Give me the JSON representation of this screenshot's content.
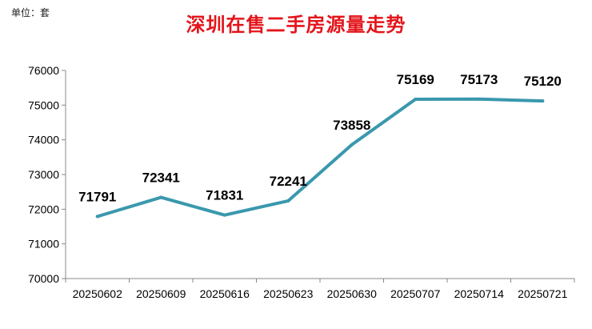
{
  "unit_label": "单位：套",
  "chart_data": {
    "type": "line",
    "title": "深圳在售二手房源量走势",
    "xlabel": "",
    "ylabel": "",
    "categories": [
      "20250602",
      "20250609",
      "20250616",
      "20250623",
      "20250630",
      "20250707",
      "20250714",
      "20250721"
    ],
    "series": [
      {
        "values": [
          71791,
          72341,
          71831,
          72241,
          73858,
          75169,
          75173,
          75120
        ]
      }
    ],
    "ylim": [
      70000,
      76000
    ],
    "ytick_step": 1000,
    "grid": false,
    "legend": "none",
    "line_color": "#3a98ad",
    "title_color": "#e3151b"
  }
}
